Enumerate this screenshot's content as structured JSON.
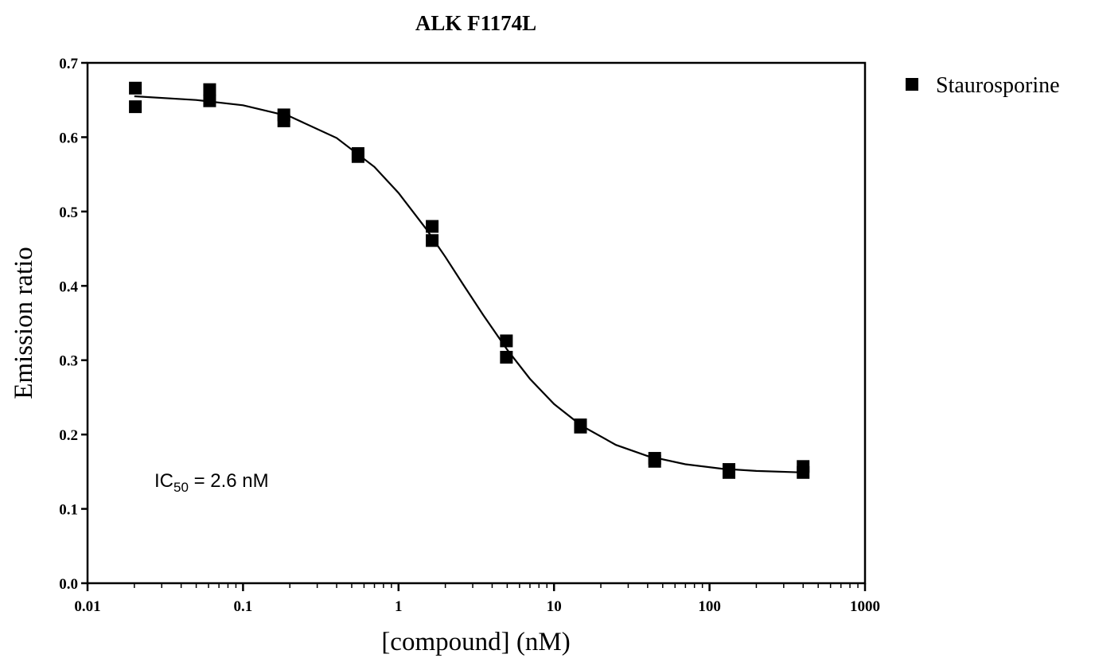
{
  "chart_data": {
    "type": "scatter",
    "title": "ALK F1174L",
    "xlabel": "[compound] (nM)",
    "ylabel": "Emission ratio",
    "xscale": "log",
    "xlim": [
      0.01,
      1000
    ],
    "xticks": [
      0.01,
      0.1,
      1,
      10,
      100,
      1000
    ],
    "x_minor_ticks": [
      0.02,
      0.03,
      0.04,
      0.05,
      0.06,
      0.07,
      0.08,
      0.09,
      0.2,
      0.3,
      0.4,
      0.5,
      0.6,
      0.7,
      0.8,
      0.9,
      2,
      3,
      4,
      5,
      6,
      7,
      8,
      9,
      20,
      30,
      40,
      50,
      60,
      70,
      80,
      90,
      200,
      300,
      400,
      500,
      600,
      700,
      800,
      900
    ],
    "ylim": [
      0,
      0.7
    ],
    "yticks": [
      {
        "value": 0,
        "label": "0.0"
      },
      0.1,
      0.2,
      0.3,
      0.4,
      0.5,
      0.6,
      0.7
    ],
    "legend": "outside-right",
    "series": [
      {
        "name": "Staurosporine",
        "color": "#000000",
        "x": [
          0.0203,
          0.0203,
          0.061,
          0.061,
          0.183,
          0.183,
          0.549,
          0.549,
          1.646,
          1.646,
          4.94,
          4.94,
          14.8,
          14.8,
          44.4,
          44.4,
          133.3,
          133.3,
          400,
          400
        ],
        "values": [
          0.666,
          0.641,
          0.664,
          0.649,
          0.63,
          0.622,
          0.578,
          0.574,
          0.48,
          0.461,
          0.326,
          0.304,
          0.213,
          0.21,
          0.168,
          0.164,
          0.153,
          0.149,
          0.157,
          0.149
        ]
      }
    ],
    "curve": {
      "color": "#000000",
      "x": [
        0.02,
        0.05,
        0.1,
        0.2,
        0.4,
        0.7,
        1,
        1.5,
        2,
        2.6,
        3.5,
        5,
        7,
        10,
        15,
        25,
        40,
        70,
        120,
        200,
        400
      ],
      "y": [
        0.655,
        0.65,
        0.643,
        0.628,
        0.599,
        0.56,
        0.525,
        0.477,
        0.439,
        0.402,
        0.361,
        0.314,
        0.275,
        0.241,
        0.212,
        0.186,
        0.171,
        0.16,
        0.154,
        0.151,
        0.149
      ]
    },
    "annotation": {
      "text": "IC",
      "sub": "50",
      "rest": " = 2.6 nM"
    }
  }
}
